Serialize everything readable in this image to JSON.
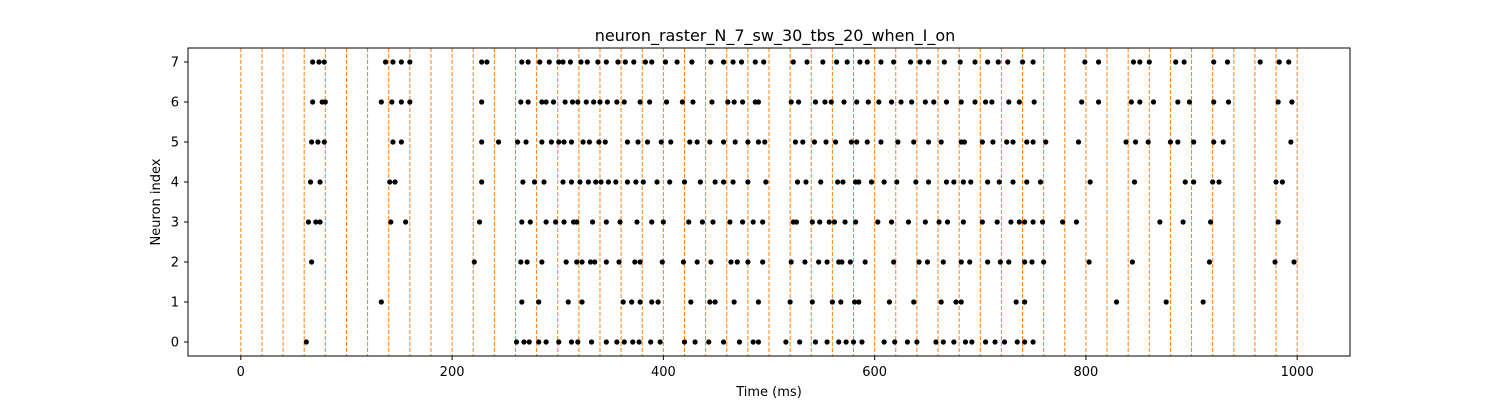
{
  "chart_data": {
    "type": "scatter",
    "title": "neuron_raster_N_7_sw_30_tbs_20_when_I_on",
    "xlabel": "Time (ms)",
    "ylabel": "Neuron index",
    "xlim": [
      -50,
      1050
    ],
    "ylim": [
      -0.35,
      7.35
    ],
    "xticks": [
      0,
      200,
      400,
      600,
      800,
      1000
    ],
    "yticks": [
      0,
      1,
      2,
      3,
      4,
      5,
      6,
      7
    ],
    "grid": false,
    "legend": "none",
    "marker_color": "#000000",
    "vline_color": "#ff7f0e",
    "vline_style": "dashed",
    "vlines": [
      0,
      20,
      40,
      60,
      80,
      100,
      120,
      140,
      160,
      180,
      200,
      220,
      240,
      260,
      280,
      300,
      320,
      340,
      360,
      380,
      400,
      420,
      440,
      460,
      480,
      500,
      520,
      540,
      560,
      580,
      600,
      620,
      640,
      660,
      680,
      700,
      720,
      740,
      760,
      780,
      800,
      820,
      840,
      860,
      880,
      900,
      920,
      940,
      960,
      980,
      1000
    ],
    "spikes": [
      {
        "neuron": 0,
        "times": [
          62,
          261,
          268,
          273,
          282,
          289,
          301,
          313,
          319,
          332,
          346,
          356,
          363,
          371,
          377,
          388,
          397,
          420,
          430,
          443,
          457,
          472,
          485,
          490,
          516,
          529,
          544,
          555,
          566,
          573,
          580,
          588,
          609,
          619,
          631,
          640,
          658,
          665,
          675,
          686,
          692,
          705,
          714,
          723,
          735,
          742,
          750
        ]
      },
      {
        "neuron": 1,
        "times": [
          133,
          266,
          282,
          310,
          323,
          362,
          370,
          378,
          389,
          395,
          426,
          444,
          449,
          467,
          490,
          520,
          541,
          560,
          568,
          581,
          585,
          614,
          637,
          663,
          677,
          682,
          734,
          742,
          829,
          876,
          911
        ]
      },
      {
        "neuron": 2,
        "times": [
          67,
          221,
          265,
          271,
          285,
          308,
          318,
          323,
          331,
          335,
          346,
          358,
          373,
          378,
          399,
          419,
          432,
          445,
          464,
          470,
          480,
          494,
          521,
          534,
          547,
          555,
          566,
          569,
          577,
          591,
          618,
          642,
          650,
          665,
          682,
          690,
          707,
          719,
          727,
          742,
          749,
          760,
          803,
          844,
          917,
          979,
          997
        ]
      },
      {
        "neuron": 3,
        "times": [
          64,
          71,
          75,
          142,
          156,
          226,
          266,
          274,
          289,
          298,
          306,
          315,
          318,
          333,
          346,
          359,
          375,
          389,
          400,
          424,
          437,
          447,
          463,
          475,
          485,
          494,
          523,
          526,
          541,
          548,
          557,
          562,
          572,
          582,
          603,
          616,
          632,
          648,
          661,
          669,
          684,
          702,
          716,
          729,
          737,
          742,
          750,
          759,
          778,
          791,
          870,
          892,
          918,
          982
        ]
      },
      {
        "neuron": 4,
        "times": [
          66,
          75,
          141,
          146,
          228,
          267,
          278,
          287,
          305,
          313,
          321,
          329,
          336,
          341,
          348,
          355,
          366,
          374,
          381,
          394,
          406,
          420,
          435,
          449,
          457,
          466,
          480,
          497,
          527,
          535,
          549,
          565,
          570,
          582,
          585,
          597,
          609,
          621,
          639,
          651,
          668,
          675,
          684,
          691,
          707,
          718,
          731,
          744,
          757,
          804,
          846,
          894,
          902,
          920,
          926,
          980,
          986
        ]
      },
      {
        "neuron": 5,
        "times": [
          67,
          73,
          79,
          144,
          152,
          228,
          244,
          262,
          270,
          285,
          294,
          301,
          306,
          313,
          324,
          330,
          339,
          345,
          366,
          376,
          385,
          398,
          407,
          425,
          432,
          444,
          457,
          468,
          480,
          490,
          496,
          525,
          532,
          543,
          554,
          563,
          578,
          583,
          593,
          606,
          622,
          637,
          651,
          663,
          682,
          685,
          702,
          712,
          725,
          731,
          744,
          750,
          762,
          793,
          838,
          847,
          859,
          880,
          887,
          902,
          921,
          930,
          994
        ]
      },
      {
        "neuron": 6,
        "times": [
          68,
          77,
          80,
          133,
          143,
          152,
          160,
          228,
          265,
          272,
          285,
          289,
          296,
          307,
          314,
          319,
          327,
          334,
          340,
          347,
          356,
          363,
          378,
          387,
          403,
          418,
          428,
          446,
          461,
          467,
          475,
          487,
          490,
          521,
          528,
          544,
          553,
          559,
          571,
          583,
          594,
          604,
          616,
          625,
          635,
          648,
          656,
          668,
          682,
          695,
          705,
          711,
          727,
          737,
          751,
          796,
          812,
          843,
          851,
          864,
          887,
          898,
          921,
          935,
          982,
          995
        ]
      },
      {
        "neuron": 7,
        "times": [
          68,
          74,
          79,
          137,
          144,
          152,
          160,
          228,
          233,
          266,
          272,
          283,
          292,
          301,
          305,
          312,
          322,
          328,
          338,
          346,
          357,
          364,
          372,
          383,
          389,
          402,
          413,
          427,
          445,
          457,
          466,
          474,
          487,
          495,
          523,
          536,
          551,
          564,
          574,
          586,
          593,
          606,
          618,
          634,
          643,
          651,
          666,
          681,
          695,
          707,
          717,
          726,
          740,
          750,
          799,
          812,
          845,
          851,
          860,
          885,
          893,
          921,
          934,
          965,
          983,
          992
        ]
      }
    ]
  }
}
